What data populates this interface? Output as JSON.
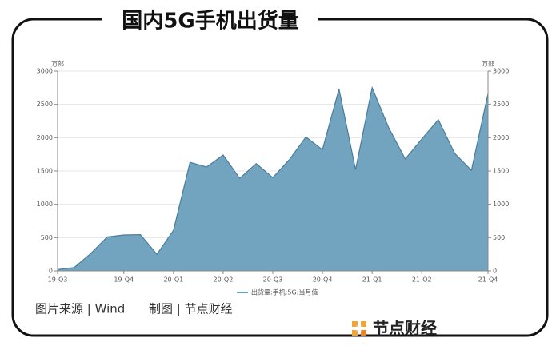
{
  "chart_data": {
    "type": "area",
    "title": "国内5G手机出货量",
    "categories": [
      "19-Q3",
      null,
      null,
      null,
      "19-Q4",
      null,
      null,
      "20-Q1",
      null,
      null,
      "20-Q2",
      null,
      null,
      "20-Q3",
      null,
      null,
      "20-Q4",
      null,
      null,
      "21-Q1",
      null,
      null,
      "21-Q2",
      null,
      null,
      null,
      "21-Q4"
    ],
    "series": [
      {
        "name": "出货量:手机:5G:当月值",
        "color": "#6a9fbd",
        "values": [
          20,
          50,
          260,
          510,
          540,
          545,
          250,
          610,
          1630,
          1560,
          1740,
          1390,
          1610,
          1400,
          1670,
          2010,
          1820,
          2730,
          1520,
          2750,
          2150,
          1680,
          1980,
          2270,
          1760,
          1510,
          2660
        ]
      }
    ],
    "ylabel": "万部",
    "y2label": "万部",
    "ylim": [
      0,
      3000
    ],
    "yticks": [
      0,
      500,
      1000,
      1500,
      2000,
      2500,
      3000
    ],
    "y2lim": [
      0,
      3000
    ],
    "y2ticks": [
      0,
      500,
      1000,
      1500,
      2000,
      2500,
      3000
    ],
    "grid": true,
    "legend": "bottom"
  },
  "footer": {
    "source": "图片来源 | Wind",
    "credit": "制图 | 节点财经",
    "brand": "节点财经"
  }
}
